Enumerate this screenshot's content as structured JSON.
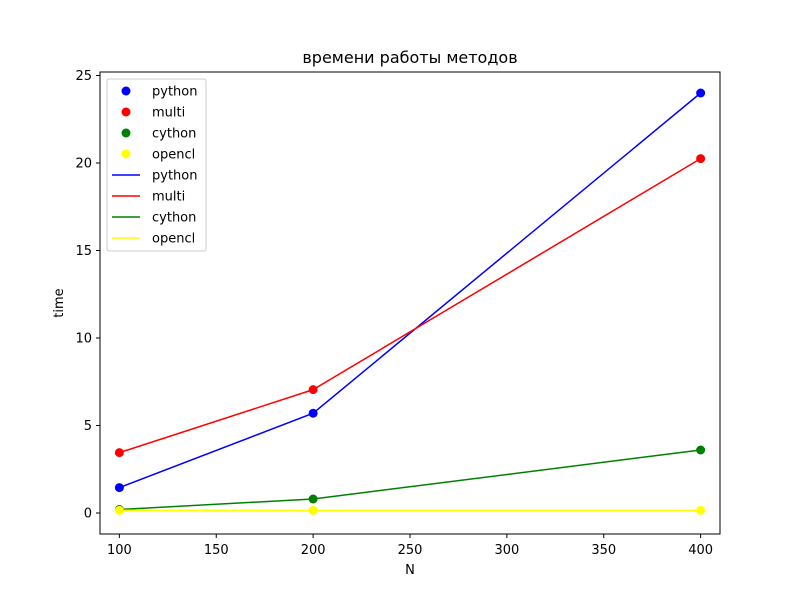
{
  "chart_data": {
    "type": "line",
    "title": "времени работы методов",
    "xlabel": "N",
    "ylabel": "time",
    "xlim": [
      90,
      410
    ],
    "ylim": [
      -1.2,
      25.2
    ],
    "xticks": [
      100,
      150,
      200,
      250,
      300,
      350,
      400
    ],
    "yticks": [
      0,
      5,
      10,
      15,
      20,
      25
    ],
    "grid": false,
    "legend_position": "top-left",
    "x": [
      100,
      200,
      400
    ],
    "series": [
      {
        "name": "python",
        "color": "#0000ff",
        "values": [
          1.45,
          5.7,
          24.0
        ]
      },
      {
        "name": "multi",
        "color": "#ff0000",
        "values": [
          3.45,
          7.05,
          20.25
        ]
      },
      {
        "name": "cython",
        "color": "#008000",
        "values": [
          0.2,
          0.8,
          3.6
        ]
      },
      {
        "name": "opencl",
        "color": "#ffff00",
        "values": [
          0.15,
          0.15,
          0.15
        ]
      }
    ],
    "legend_entries": [
      {
        "label": "python",
        "kind": "marker",
        "color": "#0000ff"
      },
      {
        "label": "multi",
        "kind": "marker",
        "color": "#ff0000"
      },
      {
        "label": "cython",
        "kind": "marker",
        "color": "#008000"
      },
      {
        "label": "opencl",
        "kind": "marker",
        "color": "#ffff00"
      },
      {
        "label": "python",
        "kind": "line",
        "color": "#0000ff"
      },
      {
        "label": "multi",
        "kind": "line",
        "color": "#ff0000"
      },
      {
        "label": "cython",
        "kind": "line",
        "color": "#008000"
      },
      {
        "label": "opencl",
        "kind": "line",
        "color": "#ffff00"
      }
    ]
  }
}
